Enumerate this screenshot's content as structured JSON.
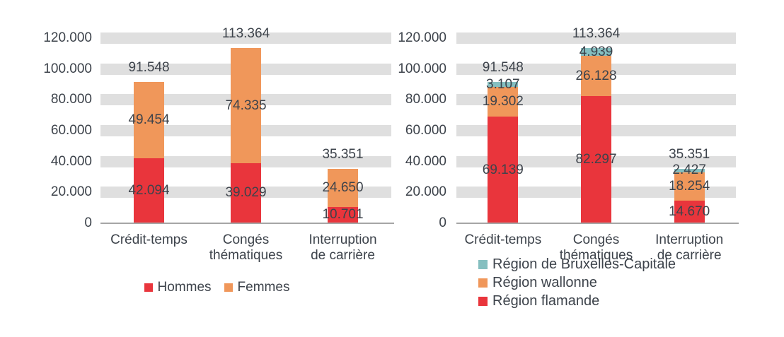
{
  "colors": {
    "red": "#e9353c",
    "orange": "#f0975a",
    "teal": "#85bfc0",
    "gridline": "#dfdfdf",
    "axis_line": "#a6a6a6",
    "text": "#3d434b"
  },
  "chart_data": [
    {
      "type": "bar",
      "stacked": true,
      "title": "",
      "xlabel": "",
      "ylabel": "",
      "categories": [
        "Crédit-temps",
        "Congés thématiques",
        "Interruption de carrière"
      ],
      "category_lines": [
        [
          "Crédit-temps"
        ],
        [
          "Congés",
          "thématiques"
        ],
        [
          "Interruption",
          "de carrière"
        ]
      ],
      "series": [
        {
          "name": "Hommes",
          "color": "red",
          "values": [
            42094,
            39029,
            10701
          ],
          "value_labels": [
            "42.094",
            "39.029",
            "10.701"
          ]
        },
        {
          "name": "Femmes",
          "color": "orange",
          "values": [
            49454,
            74335,
            24650
          ],
          "value_labels": [
            "49.454",
            "74.335",
            "24.650"
          ]
        }
      ],
      "totals": [
        91548,
        113364,
        35351
      ],
      "total_labels": [
        "91.548",
        "113.364",
        "35.351"
      ],
      "ylim": [
        0,
        120000
      ],
      "ytick_step": 20000,
      "y_tick_labels": [
        "0",
        "20.000",
        "40.000",
        "60.000",
        "80.000",
        "100.000",
        "120.000"
      ],
      "grid": "thick-horizontal-bands",
      "legend_position": "bottom-center-horizontal",
      "legend": [
        {
          "label": "Hommes",
          "color": "red"
        },
        {
          "label": "Femmes",
          "color": "orange"
        }
      ]
    },
    {
      "type": "bar",
      "stacked": true,
      "title": "",
      "xlabel": "",
      "ylabel": "",
      "categories": [
        "Crédit-temps",
        "Congés thématiques",
        "Interruption de carrière"
      ],
      "category_lines": [
        [
          "Crédit-temps"
        ],
        [
          "Congés",
          "thématiques"
        ],
        [
          "Interruption",
          "de carrière"
        ]
      ],
      "series": [
        {
          "name": "Région flamande",
          "color": "red",
          "values": [
            69139,
            82297,
            14670
          ],
          "value_labels": [
            "69.139",
            "82.297",
            "14.670"
          ]
        },
        {
          "name": "Région wallonne",
          "color": "orange",
          "values": [
            19302,
            26128,
            18254
          ],
          "value_labels": [
            "19.302",
            "26.128",
            "18.254"
          ]
        },
        {
          "name": "Région de Bruxelles-Capitale",
          "color": "teal",
          "values": [
            3107,
            4939,
            2427
          ],
          "value_labels": [
            "3.107",
            "4.939",
            "2.427"
          ]
        }
      ],
      "totals": [
        91548,
        113364,
        35351
      ],
      "total_labels": [
        "91.548",
        "113.364",
        "35.351"
      ],
      "ylim": [
        0,
        120000
      ],
      "ytick_step": 20000,
      "y_tick_labels": [
        "0",
        "20.000",
        "40.000",
        "60.000",
        "80.000",
        "100.000",
        "120.000"
      ],
      "grid": "thick-horizontal-bands",
      "legend_position": "bottom-left-vertical",
      "legend": [
        {
          "label": "Région de Bruxelles-Capitale",
          "color": "teal"
        },
        {
          "label": "Région wallonne",
          "color": "orange"
        },
        {
          "label": "Région flamande",
          "color": "red"
        }
      ]
    }
  ]
}
